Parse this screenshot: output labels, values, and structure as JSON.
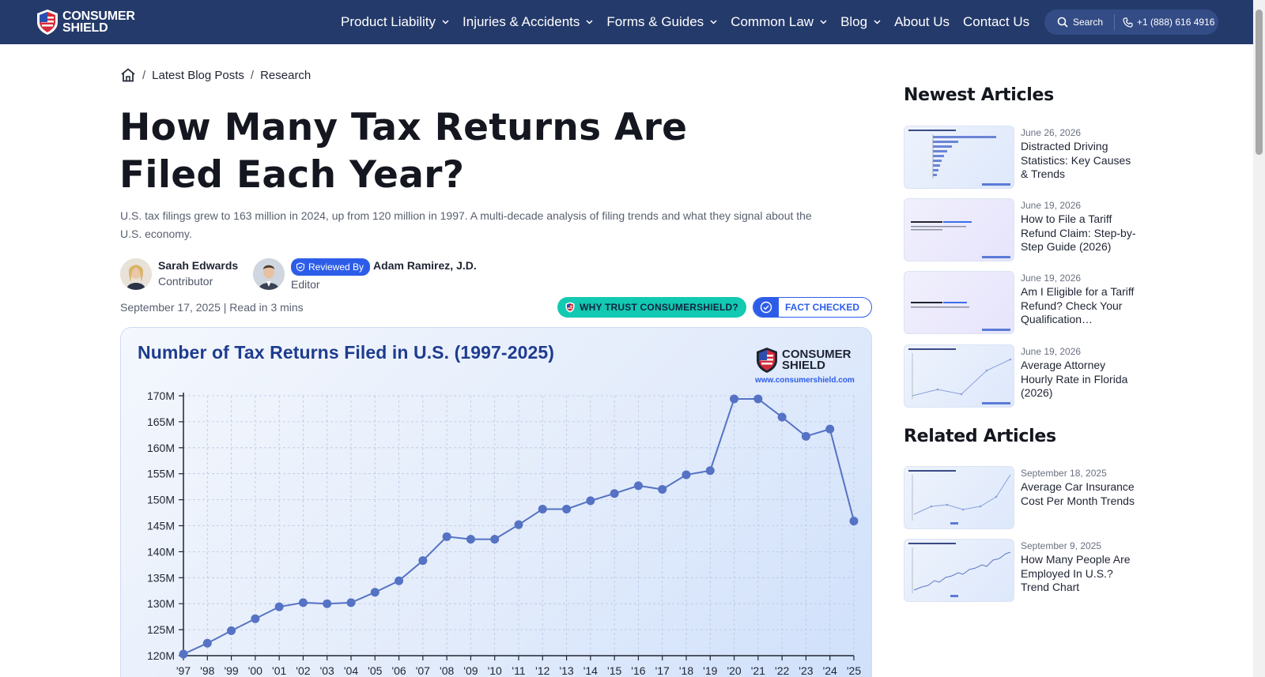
{
  "brand": {
    "line1": "CONSUMER",
    "line2": "SHIELD"
  },
  "nav": {
    "items": [
      {
        "label": "Product Liability",
        "dropdown": true
      },
      {
        "label": "Injuries & Accidents",
        "dropdown": true
      },
      {
        "label": "Forms & Guides",
        "dropdown": true
      },
      {
        "label": "Common Law",
        "dropdown": true
      },
      {
        "label": "Blog",
        "dropdown": true
      },
      {
        "label": "About Us",
        "dropdown": false
      },
      {
        "label": "Contact Us",
        "dropdown": false
      }
    ],
    "search_label": "Search",
    "phone": "+1 (888) 616 4916"
  },
  "breadcrumb": {
    "item1": "Latest Blog Posts",
    "item2": "Research"
  },
  "article": {
    "title": "How Many Tax Returns Are Filed Each Year?",
    "subtitle": "U.S. tax filings grew to 163 million in 2024, up from 120 million in 1997. A multi-decade analysis of filing trends and what they signal about the U.S. economy.",
    "author": {
      "name": "Sarah Edwards",
      "role": "Contributor"
    },
    "reviewer": {
      "badge": "Reviewed By",
      "name": "Adam Ramirez, J.D.",
      "role": "Editor"
    },
    "date": "September 17, 2025",
    "read_time": "Read in 3 mins",
    "trust_button": "WHY TRUST CONSUMERSHIELD?",
    "fact_button": "FACT CHECKED"
  },
  "chart_brand": {
    "line1": "CONSUMER",
    "line2": "SHIELD",
    "url": "www.consumershield.com"
  },
  "chart_data": {
    "type": "line",
    "title": "Number of Tax Returns Filed in U.S. (1997-2025)",
    "xlabel": "",
    "ylabel": "",
    "x": [
      "'97",
      "'98",
      "'99",
      "'00",
      "'01",
      "'02",
      "'03",
      "'04",
      "'05",
      "'06",
      "'07",
      "'08",
      "'09",
      "'10",
      "'11",
      "'12",
      "'13",
      "'14",
      "'15",
      "'16",
      "'17",
      "'18",
      "'19",
      "'20",
      "'21",
      "'22",
      "'23",
      "'24",
      "'25"
    ],
    "values": [
      120.3,
      122.4,
      124.8,
      127.1,
      129.4,
      130.2,
      130.0,
      130.2,
      132.2,
      134.4,
      138.3,
      142.9,
      142.4,
      142.4,
      145.2,
      148.2,
      148.2,
      149.8,
      151.2,
      152.7,
      152.0,
      154.8,
      155.6,
      169.4,
      169.4,
      165.9,
      162.2,
      163.6,
      145.9
    ],
    "yticks": [
      "120M",
      "125M",
      "130M",
      "135M",
      "140M",
      "145M",
      "150M",
      "155M",
      "160M",
      "165M",
      "170M"
    ],
    "ylim": [
      120,
      170
    ],
    "grid": true,
    "line_color": "#5572c4"
  },
  "sidebar": {
    "newest_heading": "Newest Articles",
    "newest": [
      {
        "date": "June 26, 2026",
        "title": "Distracted Driving Statistics: Key Causes & Trends"
      },
      {
        "date": "June 19, 2026",
        "title": "How to File a Tariff Refund Claim: Step-by-Step Guide (2026)"
      },
      {
        "date": "June 19, 2026",
        "title": "Am I Eligible for a Tariff Refund? Check Your Qualification…"
      },
      {
        "date": "June 19, 2026",
        "title": "Average Attorney Hourly Rate in Florida (2026)"
      }
    ],
    "related_heading": "Related Articles",
    "related": [
      {
        "date": "September 18, 2025",
        "title": "Average Car Insurance Cost Per Month Trends"
      },
      {
        "date": "September 9, 2025",
        "title": "How Many People Are Employed In U.S.? Trend Chart"
      }
    ]
  }
}
